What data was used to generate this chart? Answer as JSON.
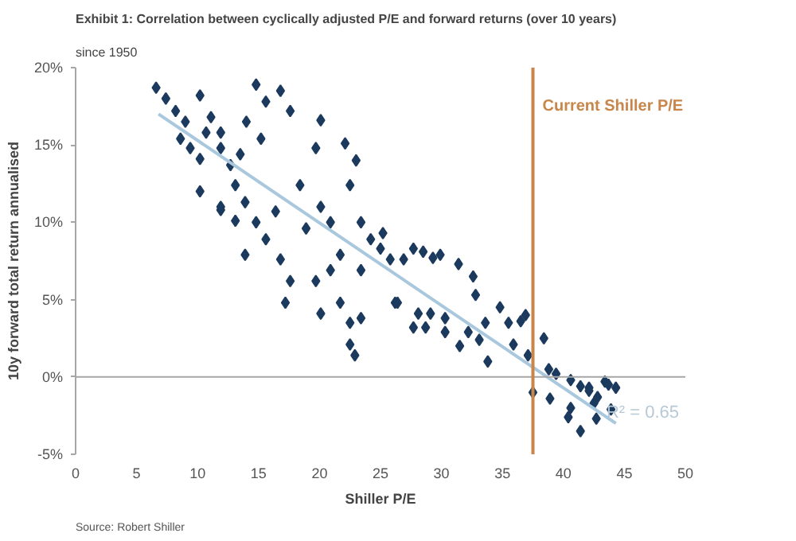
{
  "chart_data": {
    "type": "scatter",
    "title": "Exhibit 1: Correlation between cyclically adjusted P/E and forward returns (over 10 years)",
    "subtitle": "since 1950",
    "xlabel": "Shiller P/E",
    "ylabel": "10y forward total return annualised",
    "xlim": [
      0,
      50
    ],
    "xticks": [
      0,
      5,
      10,
      15,
      20,
      25,
      30,
      35,
      40,
      45,
      50
    ],
    "ylim": [
      -5,
      20
    ],
    "yticks": [
      {
        "value": -5,
        "label": "-5%"
      },
      {
        "value": 0,
        "label": "0%"
      },
      {
        "value": 5,
        "label": "5%"
      },
      {
        "value": 10,
        "label": "10%"
      },
      {
        "value": 15,
        "label": "15%"
      },
      {
        "value": 20,
        "label": "20%"
      }
    ],
    "grid": false,
    "marker": "diamond",
    "series": [
      {
        "color": "#1b3a5e",
        "x": [
          6.6,
          7.4,
          8.2,
          9.0,
          8.6,
          9.4,
          10.2,
          10.7,
          11.1,
          10.2,
          11.9,
          11.9,
          12.7,
          13.5,
          14.8,
          15.6,
          16.8,
          17.6,
          14.0,
          15.2,
          13.1,
          13.9,
          11.9,
          14.8,
          13.9,
          15.6,
          16.4,
          16.8,
          17.6,
          17.2,
          18.4,
          19.7,
          20.1,
          18.9,
          20.1,
          20.9,
          21.7,
          20.9,
          19.7,
          20.1,
          21.7,
          22.5,
          23.4,
          22.5,
          22.9,
          22.1,
          23.0,
          22.5,
          23.4,
          24.2,
          25.0,
          25.8,
          23.4,
          26.2,
          10.2,
          11.9,
          13.1,
          25.2,
          26.9,
          27.7,
          28.5,
          29.3,
          29.9,
          31.4,
          32.6,
          32.8,
          26.4,
          28.1,
          29.1,
          27.7,
          28.7,
          30.3,
          30.3,
          31.5,
          32.2,
          33.1,
          33.6,
          33.8,
          34.8,
          35.5,
          35.9,
          36.5,
          36.9,
          37.1,
          37.5,
          38.4,
          38.8,
          39.4,
          38.9,
          40.6,
          40.6,
          40.4,
          41.4,
          41.4,
          42.1,
          42.1,
          42.8,
          42.7,
          43.4,
          43.7,
          44.3,
          43.9,
          42.5
        ],
        "values": [
          18.7,
          18.0,
          17.2,
          16.5,
          15.4,
          14.8,
          14.1,
          15.8,
          16.8,
          18.2,
          15.8,
          14.8,
          13.7,
          14.4,
          18.9,
          17.8,
          18.5,
          17.2,
          16.5,
          15.4,
          12.4,
          11.3,
          10.8,
          10.0,
          7.9,
          8.9,
          10.7,
          7.6,
          6.2,
          4.8,
          12.4,
          14.8,
          16.6,
          9.6,
          11.0,
          10.0,
          7.9,
          6.9,
          6.2,
          4.1,
          4.8,
          3.5,
          3.8,
          2.1,
          1.4,
          15.1,
          14.0,
          12.4,
          10.0,
          8.9,
          8.3,
          7.6,
          6.9,
          4.8,
          12.0,
          11.0,
          10.1,
          9.3,
          7.6,
          8.3,
          8.1,
          7.7,
          7.9,
          7.3,
          6.5,
          5.3,
          4.8,
          4.1,
          4.1,
          3.2,
          3.2,
          2.9,
          3.8,
          2.0,
          2.9,
          2.4,
          3.5,
          1.0,
          4.5,
          3.5,
          2.1,
          3.6,
          4.0,
          1.4,
          -1.0,
          2.5,
          0.5,
          0.2,
          -1.4,
          -0.2,
          -2.0,
          -2.6,
          -3.5,
          -0.6,
          -0.7,
          -0.9,
          -1.3,
          -2.7,
          -0.3,
          -0.5,
          -0.7,
          -2.1,
          -1.7
        ]
      },
      {
        "type": "line",
        "marker": "none",
        "color": "#a9c8de",
        "x": [
          6.8,
          44.3
        ],
        "values": [
          17.0,
          -3.0
        ]
      }
    ],
    "ref_lines": [
      {
        "axis": "y",
        "value": 0,
        "color": "#a6a6a6"
      },
      {
        "axis": "x",
        "value": 37.5,
        "label": "Current Shiller P/E",
        "color": "#c8864a"
      }
    ],
    "annotations": [
      "R² = 0.65",
      "Source: Robert Shiller"
    ]
  }
}
